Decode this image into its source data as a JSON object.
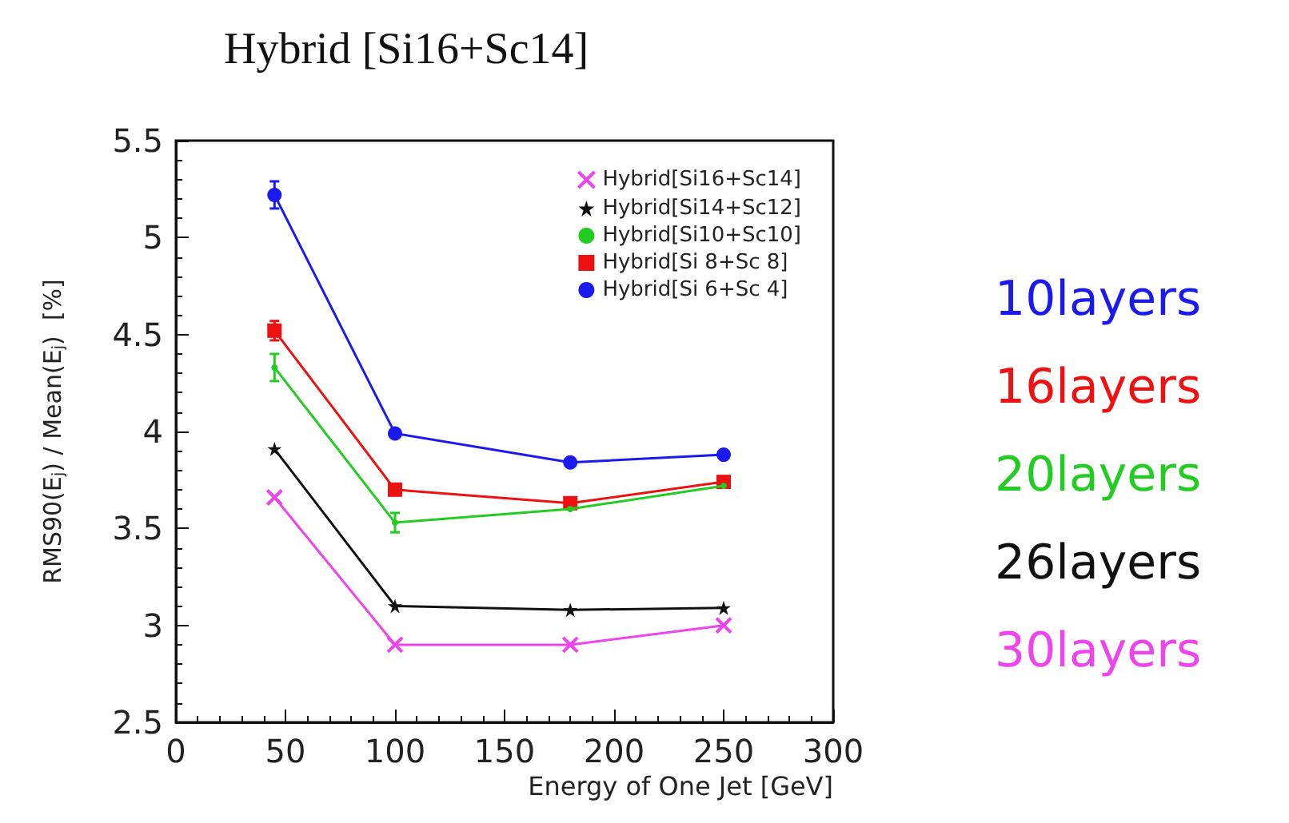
{
  "chart_data": {
    "type": "line",
    "title": "Hybrid [Si16+Sc14]",
    "xlabel": "Energy of One Jet [GeV]",
    "ylabel": "RMS90(E$_{j}$) / Mean(E$_{j}$)  [%]",
    "x": [
      45,
      100,
      180,
      250
    ],
    "series": [
      {
        "name": "Hybrid[Si16+Sc14]",
        "color": "#ee44ee",
        "marker": "cross",
        "values": [
          3.66,
          2.9,
          2.9,
          3.0
        ]
      },
      {
        "name": "Hybrid[Si14+Sc12]",
        "color": "#111111",
        "marker": "star",
        "values": [
          3.91,
          3.1,
          3.08,
          3.09
        ]
      },
      {
        "name": "Hybrid[Si10+Sc10]",
        "color": "#22cc22",
        "marker": "circle",
        "values": [
          4.33,
          3.53,
          3.6,
          3.72
        ],
        "errors": [
          0.07,
          0.05,
          null,
          null
        ]
      },
      {
        "name": "Hybrid[Si 8+Sc 8]",
        "color": "#ee1111",
        "marker": "square",
        "values": [
          4.52,
          3.7,
          3.63,
          3.74
        ],
        "errors": [
          0.05,
          null,
          null,
          null
        ]
      },
      {
        "name": "Hybrid[Si 6+Sc 4]",
        "color": "#1a1aee",
        "marker": "circle",
        "values": [
          5.22,
          3.99,
          3.84,
          3.88
        ],
        "errors": [
          0.07,
          null,
          null,
          null
        ]
      }
    ],
    "xlim": [
      0,
      300
    ],
    "xticks": [
      0,
      50,
      100,
      150,
      200,
      250,
      300
    ],
    "ylim": [
      2.5,
      5.5
    ],
    "yticks": [
      2.5,
      3,
      3.5,
      4,
      4.5,
      5,
      5.5
    ],
    "grid": false,
    "legend": "top right",
    "annotations": [
      "10layers",
      "16layers",
      "20layers",
      "26layers",
      "30layers"
    ]
  }
}
